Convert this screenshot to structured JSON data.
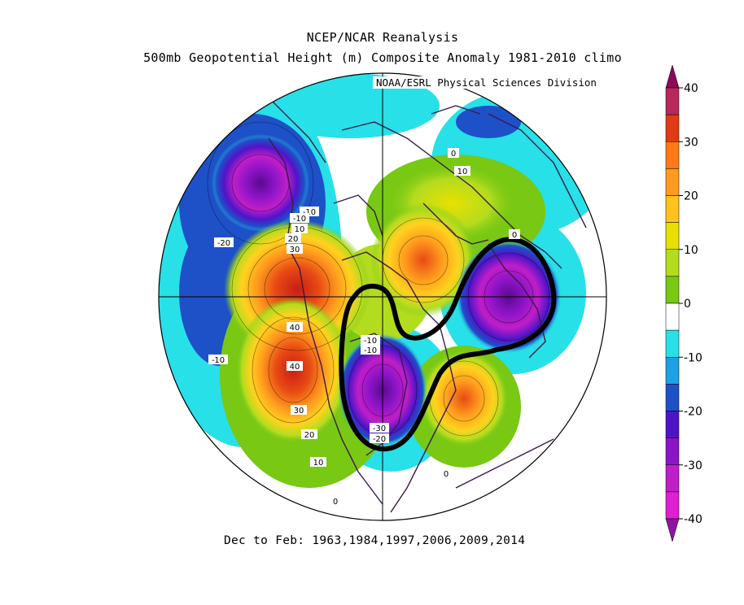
{
  "title": "NCEP/NCAR Reanalysis",
  "subtitle": "500mb Geopotential Height (m) Composite Anomaly 1981-2010 climo",
  "credit": "NOAA/ESRL Physical Sciences Division",
  "footer": "Dec to Feb: 1963,1984,1997,2006,2009,2014",
  "colorbar": {
    "ticks": [
      "40",
      "30",
      "20",
      "10",
      "0",
      "-10",
      "-20",
      "-30",
      "-40"
    ],
    "colors": [
      "#8b0a5a",
      "#b8285a",
      "#e03b14",
      "#ff7a14",
      "#ff9a1e",
      "#ffc21e",
      "#e8e000",
      "#b4dc1e",
      "#78c814",
      "#ffffff",
      "#28e0e8",
      "#1ea0e6",
      "#1e50c8",
      "#5014c8",
      "#8c14c8",
      "#c01ec8",
      "#e01ed2",
      "#8c14a0"
    ]
  },
  "contour_labels": [
    "-10",
    "-20",
    "-10",
    "10",
    "20",
    "30",
    "40",
    "-10",
    "-10",
    "40",
    "30",
    "20",
    "10",
    "0",
    "0",
    "10",
    "0",
    "-10",
    "-30",
    "-20",
    "0"
  ]
}
